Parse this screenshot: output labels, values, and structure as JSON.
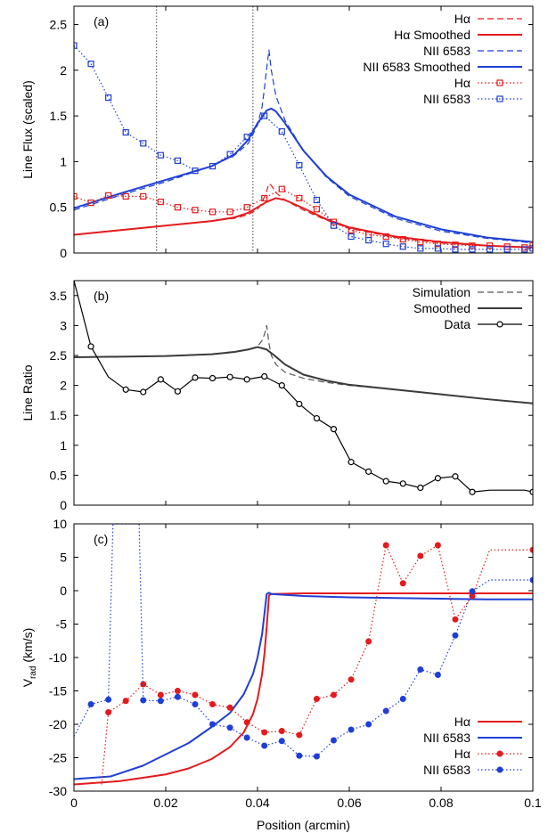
{
  "chart_data": [
    {
      "type": "line",
      "panel_label": "(a)",
      "ylabel": "Line Flux (scaled)",
      "xlim": [
        0,
        0.1
      ],
      "ylim": [
        0,
        2.7
      ],
      "yticks": [
        0,
        0.5,
        1,
        1.5,
        2,
        2.5
      ],
      "ytick_labels": [
        "0",
        "0.5",
        "1",
        "1.5",
        "2",
        "2.5"
      ],
      "legend_position": "top-right",
      "vlines": [
        0.018,
        0.039
      ],
      "series": [
        {
          "name": "Hα",
          "color": "#e41a1c",
          "style": "dashed",
          "x": [
            0,
            0.01,
            0.02,
            0.03,
            0.035,
            0.038,
            0.04,
            0.041,
            0.042,
            0.0425,
            0.043,
            0.044,
            0.046,
            0.05,
            0.055,
            0.06,
            0.07,
            0.08,
            0.09,
            0.1
          ],
          "y": [
            0.2,
            0.25,
            0.3,
            0.35,
            0.38,
            0.42,
            0.48,
            0.55,
            0.68,
            0.76,
            0.74,
            0.66,
            0.58,
            0.47,
            0.36,
            0.27,
            0.17,
            0.11,
            0.08,
            0.06
          ]
        },
        {
          "name": "Hα Smoothed",
          "color": "#e41a1c",
          "style": "solid",
          "x": [
            0,
            0.01,
            0.02,
            0.03,
            0.035,
            0.038,
            0.04,
            0.042,
            0.044,
            0.046,
            0.05,
            0.055,
            0.06,
            0.07,
            0.08,
            0.09,
            0.1
          ],
          "y": [
            0.2,
            0.25,
            0.3,
            0.35,
            0.39,
            0.44,
            0.5,
            0.56,
            0.6,
            0.58,
            0.49,
            0.37,
            0.28,
            0.18,
            0.12,
            0.08,
            0.06
          ]
        },
        {
          "name": "NII 6583",
          "color": "#1f3fd6",
          "style": "dashed",
          "x": [
            0,
            0.01,
            0.02,
            0.03,
            0.035,
            0.038,
            0.04,
            0.041,
            0.0415,
            0.042,
            0.0425,
            0.043,
            0.044,
            0.046,
            0.05,
            0.055,
            0.06,
            0.07,
            0.08,
            0.09,
            0.1
          ],
          "y": [
            0.47,
            0.63,
            0.78,
            0.95,
            1.07,
            1.2,
            1.4,
            1.6,
            1.8,
            2.02,
            2.22,
            2.0,
            1.72,
            1.45,
            1.12,
            0.83,
            0.62,
            0.38,
            0.24,
            0.16,
            0.11
          ]
        },
        {
          "name": "NII 6583 Smoothed",
          "color": "#1f3fd6",
          "style": "solid",
          "x": [
            0,
            0.01,
            0.02,
            0.03,
            0.035,
            0.038,
            0.04,
            0.042,
            0.043,
            0.044,
            0.046,
            0.05,
            0.055,
            0.06,
            0.07,
            0.08,
            0.09,
            0.1
          ],
          "y": [
            0.49,
            0.65,
            0.8,
            0.95,
            1.08,
            1.24,
            1.42,
            1.56,
            1.58,
            1.55,
            1.42,
            1.12,
            0.84,
            0.64,
            0.4,
            0.26,
            0.17,
            0.12
          ]
        },
        {
          "name": "Hα",
          "color": "#e41a1c",
          "style": "dotted",
          "marker": "square",
          "x": [
            0,
            0.0037,
            0.0075,
            0.0113,
            0.0151,
            0.0189,
            0.0226,
            0.0264,
            0.0302,
            0.034,
            0.0377,
            0.0415,
            0.0453,
            0.0491,
            0.0529,
            0.0566,
            0.0604,
            0.0642,
            0.068,
            0.0717,
            0.0755,
            0.0793,
            0.0831,
            0.0868,
            0.0906,
            0.0944,
            0.0982,
            0.1
          ],
          "y": [
            0.62,
            0.55,
            0.63,
            0.62,
            0.62,
            0.56,
            0.5,
            0.47,
            0.45,
            0.45,
            0.5,
            0.6,
            0.7,
            0.6,
            0.48,
            0.34,
            0.25,
            0.2,
            0.18,
            0.15,
            0.12,
            0.1,
            0.09,
            0.08,
            0.08,
            0.07,
            0.06,
            0.09
          ]
        },
        {
          "name": "NII 6583",
          "color": "#1f3fd6",
          "style": "dotted",
          "marker": "square",
          "x": [
            0,
            0.0037,
            0.0075,
            0.0113,
            0.0151,
            0.0189,
            0.0226,
            0.0264,
            0.0302,
            0.034,
            0.0377,
            0.0415,
            0.0453,
            0.0491,
            0.0529,
            0.0566,
            0.0604,
            0.0642,
            0.068,
            0.0717,
            0.0755,
            0.0793,
            0.0831,
            0.0868,
            0.0906,
            0.0944,
            0.0982,
            0.1
          ],
          "y": [
            2.27,
            2.07,
            1.7,
            1.32,
            1.2,
            1.07,
            1.01,
            0.9,
            0.95,
            1.08,
            1.27,
            1.5,
            1.33,
            0.96,
            0.58,
            0.3,
            0.18,
            0.14,
            0.1,
            0.07,
            0.05,
            0.05,
            0.04,
            0.04,
            0.04,
            0.04,
            0.04,
            0.05
          ]
        }
      ]
    },
    {
      "type": "line",
      "panel_label": "(b)",
      "ylabel": "Line Ratio",
      "xlim": [
        0,
        0.1
      ],
      "ylim": [
        0,
        3.75
      ],
      "yticks": [
        0,
        0.5,
        1,
        1.5,
        2,
        2.5,
        3,
        3.5
      ],
      "ytick_labels": [
        "0",
        "0.5",
        "1",
        "1.5",
        "2",
        "2.5",
        "3",
        "3.5"
      ],
      "legend_position": "top-right",
      "series": [
        {
          "name": "Simulation",
          "color": "#555555",
          "style": "dashed",
          "x": [
            0,
            0.01,
            0.02,
            0.03,
            0.035,
            0.038,
            0.04,
            0.041,
            0.0415,
            0.042,
            0.0425,
            0.043,
            0.044,
            0.046,
            0.05,
            0.055,
            0.06,
            0.07,
            0.08,
            0.09,
            0.1
          ],
          "y": [
            2.47,
            2.48,
            2.49,
            2.52,
            2.56,
            2.6,
            2.65,
            2.75,
            2.85,
            3.0,
            2.7,
            2.5,
            2.35,
            2.22,
            2.12,
            2.05,
            2.0,
            1.93,
            1.85,
            1.77,
            1.7
          ]
        },
        {
          "name": "Smoothed",
          "color": "#3a3a3a",
          "style": "solid",
          "x": [
            0,
            0.01,
            0.02,
            0.03,
            0.035,
            0.038,
            0.04,
            0.042,
            0.044,
            0.046,
            0.05,
            0.055,
            0.06,
            0.07,
            0.08,
            0.09,
            0.1
          ],
          "y": [
            2.47,
            2.48,
            2.49,
            2.52,
            2.56,
            2.6,
            2.64,
            2.6,
            2.48,
            2.35,
            2.18,
            2.08,
            2.01,
            1.93,
            1.85,
            1.77,
            1.7
          ]
        },
        {
          "name": "Data",
          "color": "#000000",
          "style": "solid",
          "marker": "circle",
          "x": [
            0,
            0.0037,
            0.0075,
            0.0113,
            0.0151,
            0.0189,
            0.0226,
            0.0264,
            0.0302,
            0.034,
            0.0377,
            0.0415,
            0.0453,
            0.0491,
            0.0529,
            0.0566,
            0.0604,
            0.0642,
            0.068,
            0.0717,
            0.0755,
            0.0793,
            0.0831,
            0.0868,
            0.0906,
            0.0944,
            0.0982,
            0.1
          ],
          "y": [
            3.75,
            2.65,
            2.14,
            1.93,
            1.89,
            2.1,
            1.9,
            2.13,
            2.12,
            2.14,
            2.1,
            2.15,
            2.0,
            1.69,
            1.45,
            1.27,
            0.72,
            0.56,
            0.4,
            0.36,
            0.29,
            0.45,
            0.48,
            0.22,
            0.25,
            0.25,
            0.25,
            0.22
          ],
          "marker_x": [
            0.0037,
            0.0113,
            0.0151,
            0.0189,
            0.0226,
            0.0264,
            0.0302,
            0.034,
            0.0377,
            0.0415,
            0.0453,
            0.0491,
            0.0529,
            0.0566,
            0.0604,
            0.0642,
            0.068,
            0.0717,
            0.0755,
            0.0793,
            0.0831,
            0.0868,
            0.1
          ]
        }
      ]
    },
    {
      "type": "line",
      "panel_label": "(c)",
      "ylabel_main": "V",
      "ylabel_sub": "rad",
      "ylabel_tail": " (km/s)",
      "xlabel": "Position (arcmin)",
      "xlim": [
        0,
        0.1
      ],
      "ylim": [
        -30,
        10
      ],
      "yticks": [
        -30,
        -25,
        -20,
        -15,
        -10,
        -5,
        0,
        5,
        10
      ],
      "ytick_labels": [
        "-30",
        "-25",
        "-20",
        "-15",
        "-10",
        "-5",
        "0",
        "5",
        "10"
      ],
      "xticks": [
        0,
        0.02,
        0.04,
        0.06,
        0.08,
        0.1
      ],
      "xtick_labels": [
        "0",
        "0.02",
        "0.04",
        "0.06",
        "0.08",
        "0.1"
      ],
      "legend_position": "bottom-right",
      "series": [
        {
          "name": "Hα",
          "color": "#e41a1c",
          "style": "solid",
          "x": [
            0,
            0.01,
            0.02,
            0.025,
            0.03,
            0.034,
            0.037,
            0.039,
            0.04,
            0.041,
            0.0415,
            0.042,
            0.0425,
            0.043,
            0.05,
            0.06,
            0.07,
            0.08,
            0.09,
            0.1
          ],
          "y": [
            -29,
            -28.5,
            -27.5,
            -26.6,
            -25.2,
            -23.4,
            -21.2,
            -18.5,
            -16.2,
            -12.5,
            -9.5,
            -5.5,
            -0.7,
            -0.5,
            -0.4,
            -0.4,
            -0.4,
            -0.4,
            -0.4,
            -0.4
          ]
        },
        {
          "name": "NII 6583",
          "color": "#1f3fd6",
          "style": "solid",
          "x": [
            0,
            0.008,
            0.015,
            0.02,
            0.025,
            0.03,
            0.034,
            0.037,
            0.039,
            0.04,
            0.041,
            0.0415,
            0.042,
            0.0425,
            0.043,
            0.05,
            0.06,
            0.07,
            0.08,
            0.09,
            0.1
          ],
          "y": [
            -28.2,
            -27.8,
            -26.2,
            -24.5,
            -22.8,
            -20.4,
            -18.3,
            -15.5,
            -12.5,
            -10,
            -6.5,
            -3.5,
            -0.5,
            -0.3,
            -0.5,
            -0.8,
            -1,
            -1.1,
            -1.2,
            -1.3,
            -1.3
          ]
        },
        {
          "name": "Hα",
          "color": "#e41a1c",
          "style": "dotted",
          "marker": "dot",
          "x": [
            0.006,
            0.0075,
            0.0113,
            0.0151,
            0.0189,
            0.0226,
            0.0264,
            0.0302,
            0.034,
            0.0377,
            0.0415,
            0.0453,
            0.0491,
            0.0529,
            0.0566,
            0.0604,
            0.0642,
            0.068,
            0.0717,
            0.0755,
            0.0793,
            0.0831,
            0.0868,
            0.0906,
            0.0944,
            0.0982,
            0.1
          ],
          "y": [
            -29,
            -18.2,
            -16.5,
            -14,
            -15.6,
            -15,
            -15.6,
            -17,
            -17.5,
            -19.7,
            -21.2,
            -21,
            -21.6,
            -16.2,
            -15.6,
            -13.3,
            -7.6,
            6.8,
            1.1,
            5.2,
            6.8,
            -4.3,
            -0.8,
            6.1,
            6.1,
            6.1,
            6.1
          ],
          "marker_x": [
            0.0075,
            0.0113,
            0.0151,
            0.0189,
            0.0226,
            0.0264,
            0.0302,
            0.034,
            0.0377,
            0.0415,
            0.0453,
            0.0491,
            0.0529,
            0.0566,
            0.0604,
            0.0642,
            0.068,
            0.0717,
            0.0755,
            0.0793,
            0.0831,
            0.0868,
            0.1
          ]
        },
        {
          "name": "NII 6583",
          "color": "#1f3fd6",
          "style": "dotted",
          "marker": "dot",
          "x": [
            0,
            0.0037,
            0.0075,
            0.0085,
            0.0142,
            0.0151,
            0.0189,
            0.0226,
            0.0264,
            0.0302,
            0.034,
            0.0377,
            0.0415,
            0.0453,
            0.0491,
            0.0529,
            0.0566,
            0.0604,
            0.0642,
            0.068,
            0.0717,
            0.0755,
            0.0793,
            0.0831,
            0.0868,
            0.0906,
            0.0944,
            0.1
          ],
          "y": [
            -21.8,
            -17,
            -16.3,
            10,
            10,
            -16.4,
            -16.5,
            -15.9,
            -17,
            -20,
            -20.5,
            -22,
            -23.2,
            -22.5,
            -24.7,
            -24.8,
            -22.4,
            -20.8,
            -20,
            -18,
            -16.2,
            -11.8,
            -12.6,
            -6.7,
            -0.1,
            1.6,
            1.6,
            1.6
          ],
          "marker_x": [
            0.0037,
            0.0075,
            0.0151,
            0.0189,
            0.0226,
            0.0264,
            0.0302,
            0.034,
            0.0377,
            0.0415,
            0.0453,
            0.0491,
            0.0529,
            0.0566,
            0.0604,
            0.0642,
            0.068,
            0.0717,
            0.0755,
            0.0793,
            0.0831,
            0.0868,
            0.1
          ]
        }
      ]
    }
  ]
}
